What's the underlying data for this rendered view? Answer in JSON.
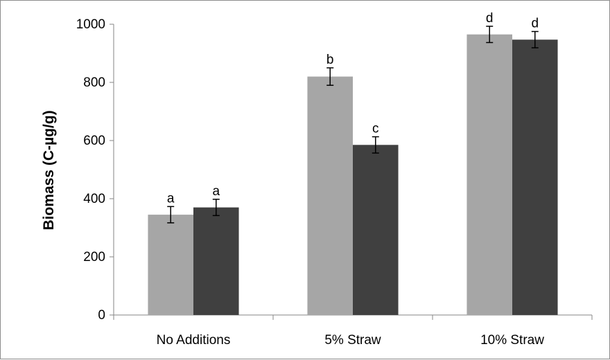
{
  "chart_data": {
    "type": "bar",
    "title": "",
    "xlabel": "",
    "ylabel": "Biomass (C-µg/g)",
    "ylim": [
      0,
      1000
    ],
    "yticks": [
      0,
      200,
      400,
      600,
      800,
      1000
    ],
    "grid": false,
    "legend": "none",
    "categories": [
      "No Additions",
      "5% Straw",
      "10% Straw"
    ],
    "series": [
      {
        "color": "#a6a6a6",
        "values": [
          345,
          820,
          965
        ],
        "errors": [
          28,
          30,
          28
        ],
        "labels": [
          "a",
          "b",
          "d"
        ]
      },
      {
        "color": "#404040",
        "values": [
          370,
          585,
          947
        ],
        "errors": [
          28,
          28,
          28
        ],
        "labels": [
          "a",
          "c",
          "d"
        ]
      }
    ]
  }
}
